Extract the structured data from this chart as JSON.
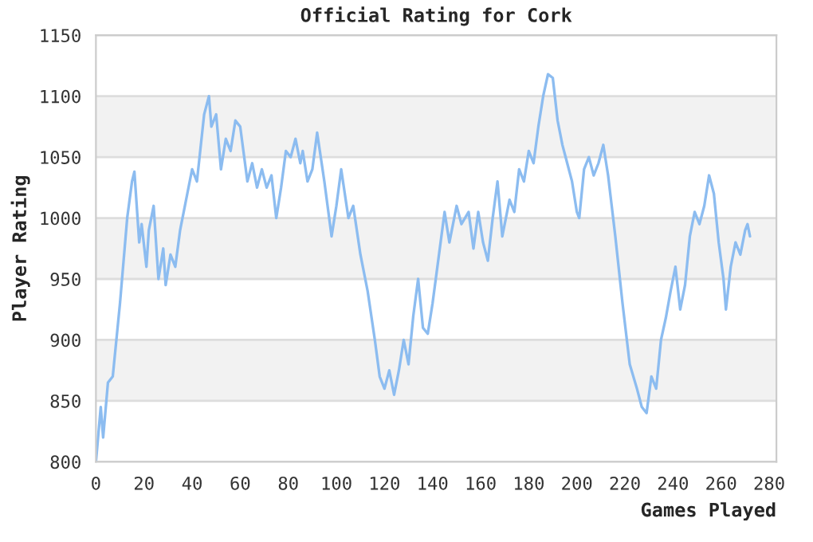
{
  "chart_data": {
    "type": "line",
    "title": "Official Rating for Cork",
    "xlabel": "Games Played",
    "ylabel": "Player Rating",
    "xlim": [
      0,
      283
    ],
    "xticks": [
      0,
      20,
      40,
      60,
      80,
      100,
      120,
      140,
      160,
      180,
      200,
      220,
      240,
      260,
      280
    ],
    "ylim": [
      800,
      1150
    ],
    "yticks": [
      800,
      850,
      900,
      950,
      1000,
      1050,
      1100,
      1150
    ],
    "grid": "y",
    "bands": [
      {
        "axis": "y",
        "from": 850,
        "to": 900,
        "color": "#f2f2f2"
      },
      {
        "axis": "y",
        "from": 950,
        "to": 1000,
        "color": "#f2f2f2"
      },
      {
        "axis": "y",
        "from": 1050,
        "to": 1100,
        "color": "#f2f2f2"
      }
    ],
    "series": [
      {
        "color": "#8cbcf0",
        "x": [
          0,
          2,
          3,
          5,
          7,
          10,
          13,
          15,
          16,
          18,
          19,
          21,
          22,
          24,
          26,
          28,
          29,
          31,
          33,
          35,
          38,
          40,
          42,
          45,
          47,
          48,
          50,
          52,
          54,
          56,
          58,
          60,
          63,
          65,
          67,
          69,
          71,
          73,
          75,
          77,
          79,
          81,
          83,
          85,
          86,
          88,
          90,
          92,
          95,
          98,
          100,
          102,
          105,
          107,
          110,
          113,
          116,
          118,
          120,
          122,
          124,
          126,
          128,
          130,
          132,
          134,
          136,
          138,
          140,
          142,
          145,
          147,
          150,
          152,
          155,
          157,
          159,
          161,
          163,
          165,
          167,
          169,
          172,
          174,
          176,
          178,
          180,
          182,
          184,
          186,
          188,
          190,
          192,
          194,
          196,
          198,
          200,
          201,
          203,
          205,
          207,
          209,
          211,
          213,
          216,
          219,
          222,
          225,
          227,
          229,
          231,
          233,
          235,
          237,
          239,
          241,
          243,
          245,
          247,
          249,
          251,
          253,
          255,
          257,
          259,
          261,
          262,
          264,
          266,
          268,
          270,
          271,
          272
        ],
        "values": [
          800,
          845,
          820,
          865,
          870,
          930,
          1000,
          1030,
          1038,
          980,
          995,
          960,
          990,
          1010,
          950,
          975,
          945,
          970,
          960,
          990,
          1020,
          1040,
          1030,
          1085,
          1100,
          1075,
          1085,
          1040,
          1065,
          1055,
          1080,
          1075,
          1030,
          1045,
          1025,
          1040,
          1025,
          1035,
          1000,
          1025,
          1055,
          1050,
          1065,
          1045,
          1055,
          1030,
          1040,
          1070,
          1030,
          985,
          1010,
          1040,
          1000,
          1010,
          970,
          940,
          900,
          870,
          860,
          875,
          855,
          875,
          900,
          880,
          920,
          950,
          910,
          905,
          930,
          960,
          1005,
          980,
          1010,
          995,
          1005,
          975,
          1005,
          980,
          965,
          1000,
          1030,
          985,
          1015,
          1005,
          1040,
          1030,
          1055,
          1045,
          1075,
          1100,
          1118,
          1115,
          1080,
          1060,
          1045,
          1030,
          1005,
          1000,
          1040,
          1050,
          1035,
          1045,
          1060,
          1035,
          985,
          930,
          880,
          860,
          845,
          840,
          870,
          860,
          900,
          918,
          940,
          960,
          925,
          945,
          985,
          1005,
          995,
          1010,
          1035,
          1020,
          980,
          950,
          925,
          960,
          980,
          970,
          990,
          995,
          985
        ]
      }
    ]
  }
}
